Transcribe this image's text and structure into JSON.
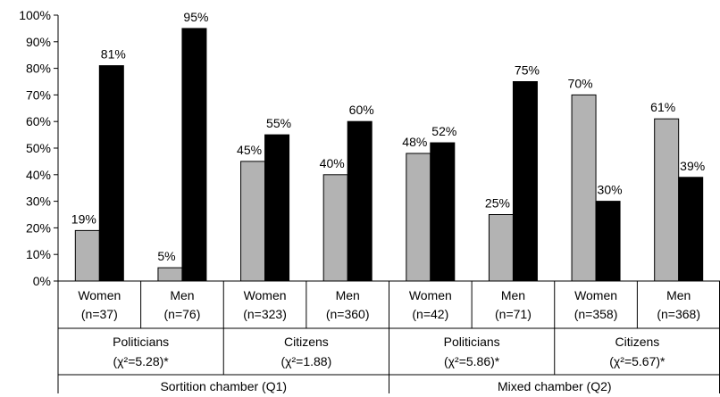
{
  "chart_data": {
    "type": "bar",
    "ylim": [
      0,
      100
    ],
    "y_ticks": [
      "0%",
      "10%",
      "20%",
      "30%",
      "40%",
      "50%",
      "60%",
      "70%",
      "80%",
      "90%",
      "100%"
    ],
    "grid": false,
    "legend": "none",
    "colors": [
      "#b3b3b3",
      "#000000"
    ],
    "categories": [
      {
        "label": "Women",
        "n": "(n=37)"
      },
      {
        "label": "Men",
        "n": "(n=76)"
      },
      {
        "label": "Women",
        "n": "(n=323)"
      },
      {
        "label": "Men",
        "n": "(n=360)"
      },
      {
        "label": "Women",
        "n": "(n=42)"
      },
      {
        "label": "Men",
        "n": "(n=71)"
      },
      {
        "label": "Women",
        "n": "(n=358)"
      },
      {
        "label": "Men",
        "n": "(n=368)"
      }
    ],
    "series": [
      {
        "values": [
          19,
          5,
          45,
          40,
          48,
          25,
          70,
          61
        ],
        "labels": [
          "19%",
          "5%",
          "45%",
          "40%",
          "48%",
          "25%",
          "70%",
          "61%"
        ]
      },
      {
        "values": [
          81,
          95,
          55,
          60,
          52,
          75,
          30,
          39
        ],
        "labels": [
          "81%",
          "95%",
          "55%",
          "60%",
          "52%",
          "75%",
          "30%",
          "39%"
        ]
      }
    ],
    "groups": [
      {
        "label": "Politicians",
        "stat": "(χ²=5.28)*"
      },
      {
        "label": "Citizens",
        "stat": "(χ²=1.88)"
      },
      {
        "label": "Politicians",
        "stat": "(χ²=5.86)*"
      },
      {
        "label": "Citizens",
        "stat": "(χ²=5.67)*"
      }
    ],
    "top_groups": [
      "Sortition chamber (Q1)",
      "Mixed chamber (Q2)"
    ]
  }
}
